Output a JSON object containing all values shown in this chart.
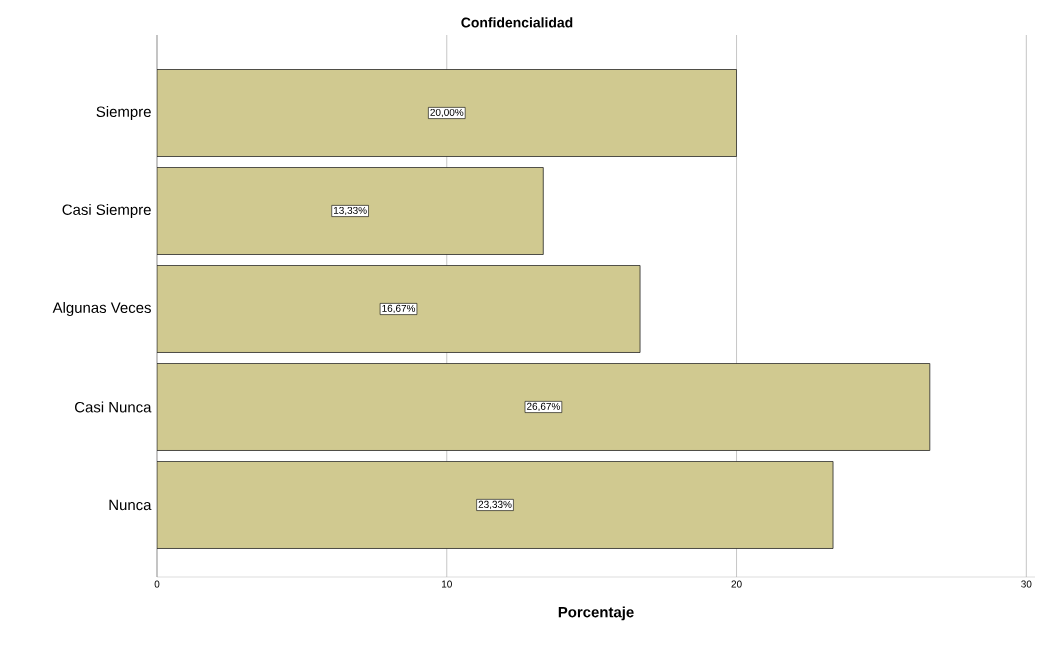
{
  "chart_data": {
    "type": "bar",
    "orientation": "horizontal",
    "title": "Confidencialidad",
    "xlabel": "Porcentaje",
    "categories": [
      "Siempre",
      "Casi Siempre",
      "Algunas Veces",
      "Casi Nunca",
      "Nunca"
    ],
    "values": [
      20.0,
      13.33,
      16.67,
      26.67,
      23.33
    ],
    "value_labels": [
      "20,00%",
      "13,33%",
      "16,67%",
      "26,67%",
      "23,33%"
    ],
    "color": "#d0c990",
    "xlim": [
      0,
      30.3
    ],
    "xticks": [
      0,
      10,
      20,
      30
    ],
    "grid": "x"
  }
}
